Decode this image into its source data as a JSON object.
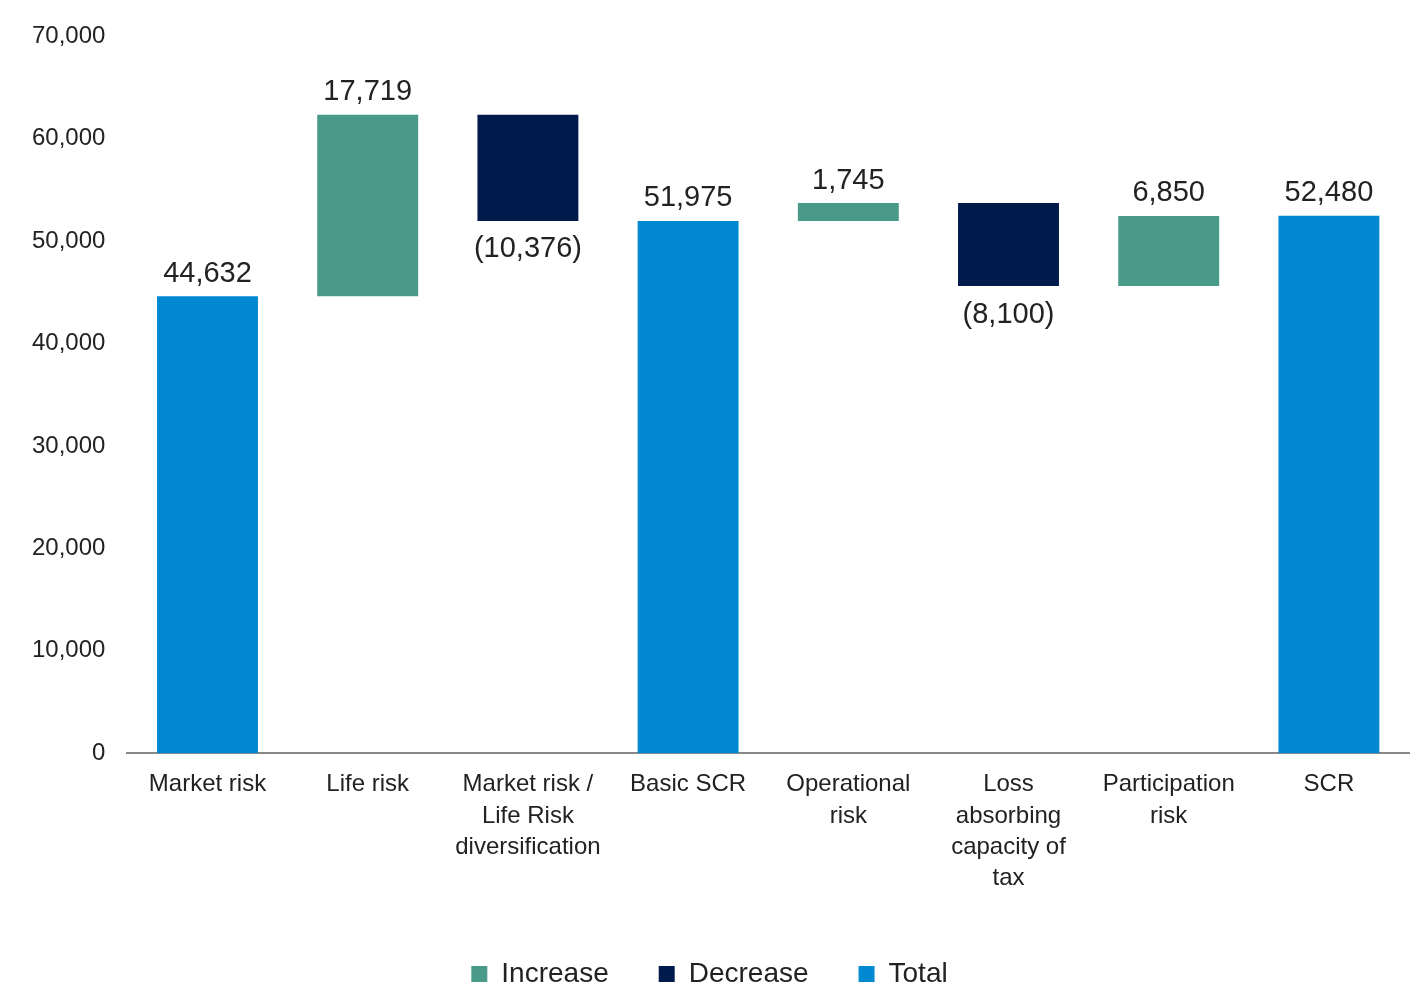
{
  "chart_data": {
    "type": "bar",
    "categories": [
      "Market risk",
      "Life risk",
      "Market risk / Life Risk diversification",
      "Basic SCR",
      "Operational risk",
      "Loss absorbing capacity of tax",
      "Participation risk",
      "SCR"
    ],
    "series": [
      {
        "name": "Increase",
        "color": "#4a9a8a",
        "base": [
          null,
          44632,
          null,
          null,
          51975,
          null,
          45620,
          null
        ],
        "values": [
          null,
          17719,
          null,
          null,
          1745,
          null,
          6850,
          null
        ],
        "value_labels": [
          null,
          "17,719",
          null,
          null,
          "1,745",
          null,
          "6,850",
          null
        ]
      },
      {
        "name": "Decrease",
        "color": "#001a4b",
        "base": [
          null,
          null,
          62351,
          null,
          null,
          53720,
          null,
          null
        ],
        "values": [
          null,
          null,
          -10376,
          null,
          null,
          -8100,
          null,
          null
        ],
        "value_labels": [
          null,
          null,
          "(10,376)",
          null,
          null,
          "(8,100)",
          null,
          null
        ]
      },
      {
        "name": "Total",
        "color": "#0089d1",
        "base": [
          0,
          null,
          null,
          0,
          null,
          null,
          null,
          0
        ],
        "values": [
          44632,
          null,
          null,
          51975,
          null,
          null,
          null,
          52480
        ],
        "value_labels": [
          "44,632",
          null,
          null,
          "51,975",
          null,
          null,
          null,
          "52,480"
        ]
      }
    ],
    "ylim": [
      0,
      70000
    ],
    "yticks": [
      {
        "value": 0,
        "label": "0"
      },
      {
        "value": 10000,
        "label": "10,000"
      },
      {
        "value": 20000,
        "label": "20,000"
      },
      {
        "value": 30000,
        "label": "30,000"
      },
      {
        "value": 40000,
        "label": "40,000"
      },
      {
        "value": 50000,
        "label": "50,000"
      },
      {
        "value": 60000,
        "label": "60,000"
      },
      {
        "value": 70000,
        "label": "70,000"
      }
    ],
    "grid": false,
    "legend": "bottom"
  }
}
